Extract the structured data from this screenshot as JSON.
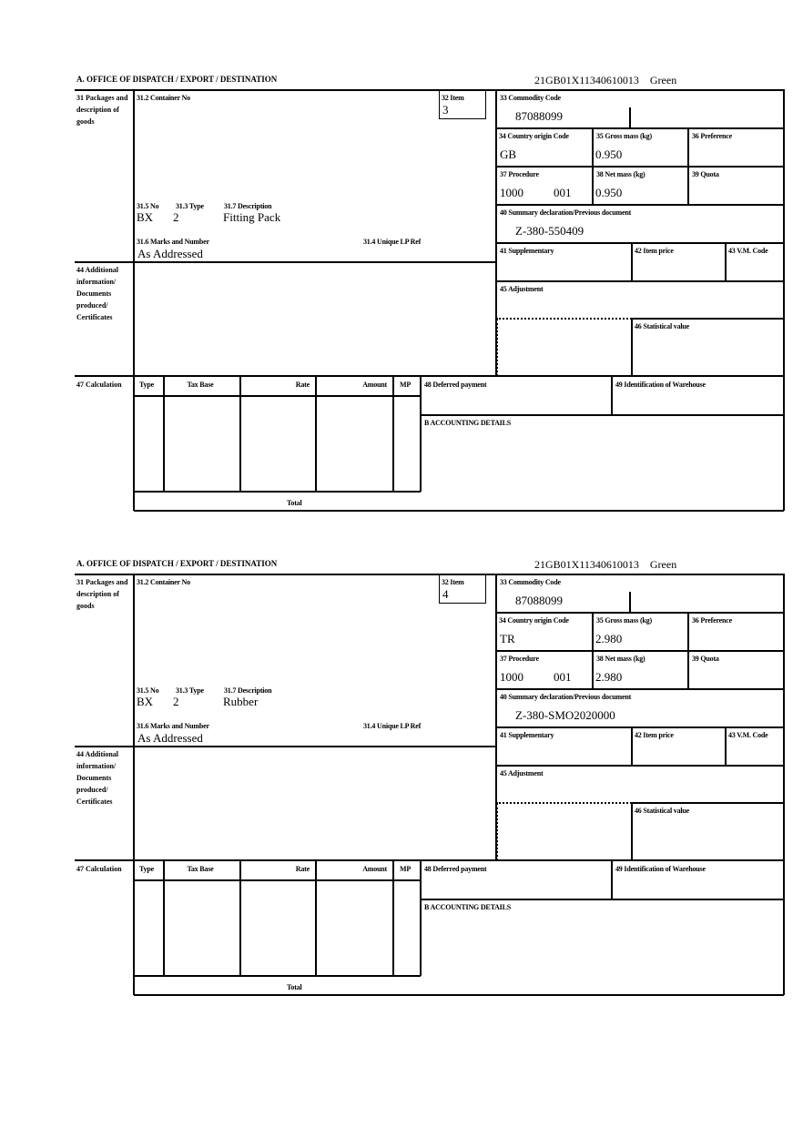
{
  "labels": {
    "office": "A.  OFFICE OF DISPATCH / EXPORT / DESTINATION",
    "packages": "31 Packages and description of goods",
    "container_no": "31.2 Container No",
    "item": "32 Item",
    "no": "31.5 No",
    "type": "31.3 Type",
    "description": "31.7 Description",
    "marks": "31.6 Marks and Number",
    "unique_lp": "31.4 Unique LP Ref",
    "commodity_code": "33 Commodity Code",
    "country_origin": "34 Country origin Code",
    "gross_mass": "35 Gross mass (kg)",
    "preference": "36 Preference",
    "procedure": "37 Procedure",
    "net_mass": "38 Net mass (kg)",
    "quota": "39 Quota",
    "summary_decl": "40 Summary declaration/Previous document",
    "supplementary": "41 Supplementary",
    "item_price": "42 Item price",
    "vm_code": "43 V.M. Code",
    "additional_info": "44 Additional information/ Documents produced/ Certificates",
    "adjustment": "45 Adjustment",
    "statistical_value": "46 Statistical value",
    "calculation": "47 Calculation",
    "calc_cols": [
      "Type",
      "Tax Base",
      "Rate",
      "Amount",
      "MP"
    ],
    "total": "Total",
    "deferred_payment": "48 Deferred payment",
    "warehouse": "49 Identification of Warehouse",
    "accounting": "B ACCOUNTING DETAILS"
  },
  "forms": [
    {
      "reference": "21GB01X11340610013    Green",
      "item": "3",
      "no": "BX",
      "type": "2",
      "description": "Fitting Pack",
      "marks": "As Addressed",
      "commodity_code": "87088099",
      "country_origin": "GB",
      "gross_mass": "0.950",
      "procedure": "1000",
      "procedure_add": "001",
      "net_mass": "0.950",
      "summary_decl": "Z-380-550409"
    },
    {
      "reference": "21GB01X11340610013    Green",
      "item": "4",
      "no": "BX",
      "type": "2",
      "description": "Rubber",
      "marks": "As Addressed",
      "commodity_code": "87088099",
      "country_origin": "TR",
      "gross_mass": "2.980",
      "procedure": "1000",
      "procedure_add": "001",
      "net_mass": "2.980",
      "summary_decl": "Z-380-SMO2020000"
    }
  ]
}
